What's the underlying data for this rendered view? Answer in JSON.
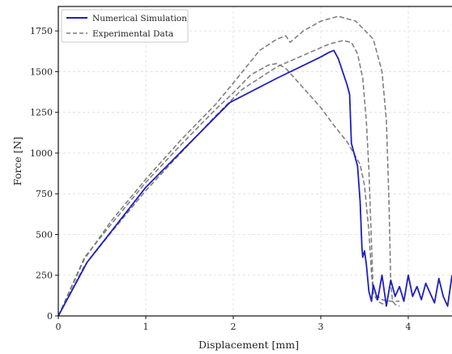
{
  "chart_data": {
    "type": "line",
    "title": "",
    "xlabel": "Displacement [mm]",
    "ylabel": "Force [N]",
    "xlim": [
      0,
      4.5
    ],
    "ylim": [
      0,
      1900
    ],
    "xticks": [
      0,
      1,
      2,
      3,
      4
    ],
    "yticks": [
      0,
      250,
      500,
      750,
      1000,
      1250,
      1500,
      1750
    ],
    "grid": true,
    "legend_position": "top-left",
    "series": [
      {
        "name": "Numerical Simulation",
        "color": "#1f1fbf",
        "style": "solid",
        "x": [
          0,
          0.33,
          1.0,
          1.96,
          2.5,
          3.0,
          3.1,
          3.15,
          3.2,
          3.25,
          3.3,
          3.33,
          3.35,
          3.38,
          3.42,
          3.45,
          3.47,
          3.48,
          3.5,
          3.52,
          3.55,
          3.58,
          3.6,
          3.65,
          3.7,
          3.75,
          3.8,
          3.85,
          3.9,
          3.95,
          4.0,
          4.05,
          4.1,
          4.15,
          4.2,
          4.25,
          4.3,
          4.35,
          4.4,
          4.45,
          4.5
        ],
        "y": [
          0,
          330,
          790,
          1310,
          1460,
          1590,
          1620,
          1630,
          1580,
          1500,
          1420,
          1360,
          1060,
          1000,
          920,
          700,
          420,
          360,
          400,
          320,
          150,
          90,
          190,
          100,
          250,
          60,
          220,
          120,
          180,
          90,
          250,
          120,
          180,
          100,
          200,
          140,
          80,
          230,
          120,
          60,
          250
        ]
      },
      {
        "name": "Experimental Data",
        "color": "#7a7a7a",
        "style": "dashed",
        "x": [
          0,
          0.3,
          0.6,
          1.0,
          1.4,
          1.8,
          2.0,
          2.2,
          2.4,
          2.5,
          2.6,
          2.8,
          3.0,
          3.15,
          3.3,
          3.45,
          3.5,
          3.55,
          3.58,
          3.6,
          3.65,
          3.7,
          3.75
        ],
        "y": [
          0,
          360,
          560,
          820,
          1050,
          1270,
          1370,
          1480,
          1540,
          1550,
          1520,
          1400,
          1280,
          1170,
          1070,
          930,
          800,
          520,
          260,
          140,
          90,
          75,
          70
        ]
      },
      {
        "name": "",
        "color": "#7a7a7a",
        "style": "dashed",
        "x": [
          0,
          0.3,
          0.6,
          1.0,
          1.4,
          1.8,
          2.1,
          2.5,
          2.8,
          3.1,
          3.25,
          3.35,
          3.42,
          3.48,
          3.52,
          3.55,
          3.58,
          3.6,
          3.7,
          3.8,
          3.9
        ],
        "y": [
          0,
          310,
          510,
          770,
          1000,
          1230,
          1390,
          1530,
          1600,
          1670,
          1690,
          1680,
          1610,
          1460,
          1200,
          900,
          450,
          140,
          100,
          90,
          90
        ]
      },
      {
        "name": "",
        "color": "#7a7a7a",
        "style": "dashed",
        "x": [
          0,
          0.3,
          0.6,
          1.0,
          1.4,
          1.8,
          2.0,
          2.3,
          2.5,
          2.6,
          2.65,
          2.8,
          3.0,
          3.2,
          3.4,
          3.6,
          3.7,
          3.75,
          3.78,
          3.8,
          3.82,
          3.85,
          3.9
        ],
        "y": [
          0,
          350,
          580,
          840,
          1080,
          1300,
          1430,
          1630,
          1700,
          1720,
          1680,
          1750,
          1810,
          1840,
          1810,
          1700,
          1500,
          1200,
          700,
          200,
          90,
          70,
          60
        ]
      }
    ]
  }
}
